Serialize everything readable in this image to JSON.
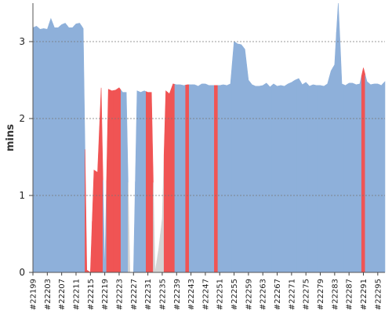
{
  "chart_data": {
    "type": "area",
    "title": "",
    "xlabel": "",
    "ylabel": "mins",
    "ylim": [
      0,
      3.5
    ],
    "yticks": [
      "0",
      "1",
      "2",
      "3"
    ],
    "grid": "horizontal dotted",
    "legend": "none",
    "colors": {
      "success": "#8eb0da",
      "failure": "#f05454",
      "unknown": "#d4d4d4"
    },
    "x": [
      "#22199",
      "#22200",
      "#22201",
      "#22202",
      "#22203",
      "#22204",
      "#22205",
      "#22206",
      "#22207",
      "#22208",
      "#22209",
      "#22210",
      "#22211",
      "#22212",
      "#22213",
      "#22214",
      "#22215",
      "#22216",
      "#22217",
      "#22218",
      "#22219",
      "#22220",
      "#22221",
      "#22222",
      "#22223",
      "#22224",
      "#22225",
      "#22226",
      "#22227",
      "#22228",
      "#22229",
      "#22230",
      "#22231",
      "#22232",
      "#22233",
      "#22234",
      "#22235",
      "#22236",
      "#22237",
      "#22238",
      "#22239",
      "#22240",
      "#22241",
      "#22242",
      "#22243",
      "#22244",
      "#22245",
      "#22246",
      "#22247",
      "#22248",
      "#22249",
      "#22250",
      "#22251",
      "#22252",
      "#22253",
      "#22254",
      "#22255",
      "#22256",
      "#22257",
      "#22258",
      "#22259",
      "#22260",
      "#22261",
      "#22262",
      "#22263",
      "#22264",
      "#22265",
      "#22266",
      "#22267",
      "#22268",
      "#22269",
      "#22270",
      "#22271",
      "#22272",
      "#22273",
      "#22274",
      "#22275",
      "#22276",
      "#22277",
      "#22278",
      "#22279",
      "#22280",
      "#22281",
      "#22282",
      "#22283",
      "#22284",
      "#22285",
      "#22286",
      "#22287",
      "#22288",
      "#22289",
      "#22290",
      "#22291",
      "#22292",
      "#22293",
      "#22294",
      "#22295",
      "#22296",
      "#22297"
    ],
    "xtick_labels": [
      "#22199",
      "#22203",
      "#22207",
      "#22211",
      "#22215",
      "#22219",
      "#22223",
      "#22227",
      "#22231",
      "#22235",
      "#22239",
      "#22243",
      "#22247",
      "#22251",
      "#22255",
      "#22259",
      "#22263",
      "#22267",
      "#22271",
      "#22275",
      "#22279",
      "#22283",
      "#22287",
      "#22291",
      "#22295"
    ],
    "values": [
      3.18,
      3.2,
      3.16,
      3.17,
      3.16,
      3.3,
      3.18,
      3.18,
      3.22,
      3.24,
      3.18,
      3.18,
      3.23,
      3.24,
      3.17,
      0.03,
      0.0,
      1.33,
      1.3,
      2.4,
      0.0,
      2.38,
      2.36,
      2.37,
      2.4,
      2.34,
      2.34,
      0.0,
      0.0,
      2.36,
      2.34,
      2.36,
      2.34,
      2.34,
      0.0,
      0.3,
      0.7,
      2.36,
      2.32,
      2.45,
      2.44,
      2.44,
      2.43,
      2.44,
      2.44,
      2.44,
      2.42,
      2.45,
      2.45,
      2.43,
      2.43,
      2.43,
      2.43,
      2.44,
      2.43,
      2.45,
      3.0,
      2.97,
      2.96,
      2.9,
      2.5,
      2.44,
      2.42,
      2.42,
      2.43,
      2.46,
      2.41,
      2.45,
      2.42,
      2.43,
      2.42,
      2.45,
      2.47,
      2.5,
      2.52,
      2.44,
      2.47,
      2.42,
      2.44,
      2.43,
      2.43,
      2.42,
      2.45,
      2.62,
      2.7,
      3.55,
      2.45,
      2.43,
      2.46,
      2.46,
      2.44,
      2.45,
      2.66,
      2.48,
      2.44,
      2.45,
      2.45,
      2.43,
      2.48
    ],
    "status": [
      "s",
      "s",
      "s",
      "s",
      "s",
      "s",
      "s",
      "s",
      "s",
      "s",
      "s",
      "s",
      "s",
      "s",
      "s",
      "f",
      "f",
      "f",
      "f",
      "f",
      "s",
      "f",
      "f",
      "f",
      "f",
      "s",
      "s",
      "u",
      "s",
      "s",
      "s",
      "s",
      "f",
      "f",
      "u",
      "u",
      "u",
      "f",
      "f",
      "f",
      "s",
      "s",
      "s",
      "f",
      "s",
      "s",
      "s",
      "s",
      "s",
      "s",
      "s",
      "f",
      "s",
      "s",
      "s",
      "s",
      "s",
      "s",
      "s",
      "s",
      "s",
      "s",
      "s",
      "s",
      "s",
      "s",
      "s",
      "s",
      "s",
      "s",
      "s",
      "s",
      "s",
      "s",
      "s",
      "s",
      "s",
      "s",
      "s",
      "s",
      "s",
      "s",
      "s",
      "s",
      "s",
      "s",
      "s",
      "s",
      "s",
      "s",
      "s",
      "s",
      "f",
      "s",
      "s",
      "s",
      "s",
      "s",
      "s"
    ]
  }
}
